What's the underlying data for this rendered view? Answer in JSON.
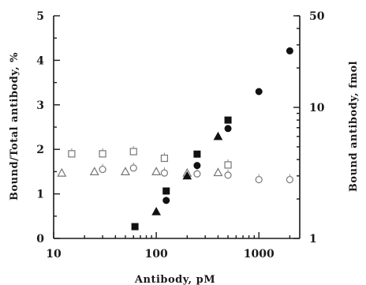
{
  "chart_data": {
    "type": "scatter",
    "x_scale": "log",
    "xlim": [
      10,
      2500
    ],
    "xticks": [
      10,
      100,
      1000
    ],
    "xtick_labels": [
      "10",
      "100",
      "1000"
    ],
    "xlabel": "Antibody, pM",
    "ylabel_left": "Bound/Total antibody, %",
    "ylim_left": [
      0,
      5
    ],
    "yticks_left": [
      0,
      1,
      2,
      3,
      4,
      5
    ],
    "ytick_labels_left": [
      "0",
      "1",
      "2",
      "3",
      "4",
      "5"
    ],
    "ylabel_right": "Bound antibody, fmol",
    "y_scale_right": "log",
    "ylim_right": [
      1,
      50
    ],
    "yticks_right": [
      1,
      10,
      50
    ],
    "ytick_labels_right": [
      "1",
      "10",
      "50"
    ],
    "grid": false,
    "series": [
      {
        "marker": "open-square",
        "axis": "left",
        "points": [
          [
            15,
            1.9
          ],
          [
            30,
            1.9
          ],
          [
            60,
            1.95
          ],
          [
            120,
            1.8
          ],
          [
            500,
            1.65
          ]
        ]
      },
      {
        "marker": "open-triangle",
        "axis": "left",
        "points": [
          [
            12,
            1.47
          ],
          [
            25,
            1.5
          ],
          [
            50,
            1.5
          ],
          [
            100,
            1.5
          ],
          [
            200,
            1.47
          ],
          [
            400,
            1.48
          ]
        ]
      },
      {
        "marker": "open-circle",
        "axis": "left",
        "points": [
          [
            30,
            1.55
          ],
          [
            60,
            1.58
          ],
          [
            120,
            1.47
          ],
          [
            250,
            1.45
          ],
          [
            500,
            1.42
          ],
          [
            1000,
            1.32
          ],
          [
            2000,
            1.32
          ]
        ]
      },
      {
        "marker": "filled-square",
        "axis": "right",
        "points": [
          [
            62,
            1.23
          ],
          [
            125,
            2.3
          ],
          [
            250,
            4.4
          ],
          [
            500,
            8.0
          ]
        ]
      },
      {
        "marker": "filled-triangle",
        "axis": "right",
        "points": [
          [
            100,
            1.6
          ],
          [
            200,
            3.0
          ],
          [
            400,
            6.0
          ]
        ]
      },
      {
        "marker": "filled-circle",
        "axis": "right",
        "points": [
          [
            125,
            1.95
          ],
          [
            250,
            3.6
          ],
          [
            500,
            6.9
          ],
          [
            1000,
            13.2
          ],
          [
            2000,
            27.0
          ]
        ]
      }
    ]
  }
}
